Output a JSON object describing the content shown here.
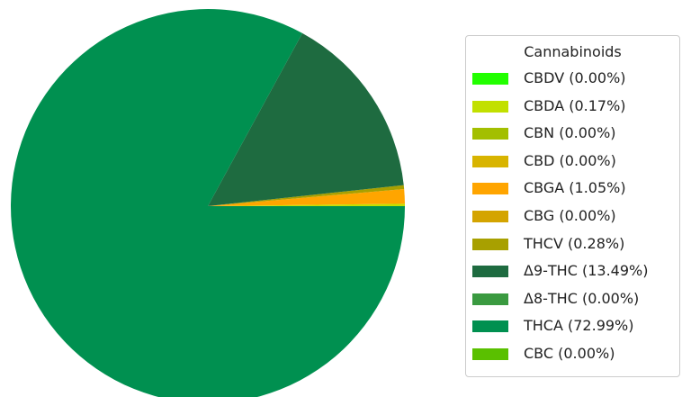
{
  "chart_data": {
    "type": "pie",
    "legend_title": "Cannabinoids",
    "legend_position": "right",
    "start_angle_deg": 0,
    "direction": "counterclockwise",
    "slices": [
      {
        "name": "CBDV",
        "label": "CBDV (0.00%)",
        "value": 0.0,
        "color": "#22ff00"
      },
      {
        "name": "CBDA",
        "label": "CBDA (0.17%)",
        "value": 0.17,
        "color": "#c2e000"
      },
      {
        "name": "CBN",
        "label": "CBN (0.00%)",
        "value": 0.0,
        "color": "#a3bf00"
      },
      {
        "name": "CBD",
        "label": "CBD (0.00%)",
        "value": 0.0,
        "color": "#d8b400"
      },
      {
        "name": "CBGA",
        "label": "CBGA (1.05%)",
        "value": 1.05,
        "color": "#ffa500"
      },
      {
        "name": "CBG",
        "label": "CBG (0.00%)",
        "value": 0.0,
        "color": "#d4a400"
      },
      {
        "name": "THCV",
        "label": "THCV (0.28%)",
        "value": 0.28,
        "color": "#a8a000"
      },
      {
        "name": "Δ9-THC",
        "label": "Δ9-THC (13.49%)",
        "value": 13.49,
        "color": "#1e6b40"
      },
      {
        "name": "Δ8-THC",
        "label": "Δ8-THC (0.00%)",
        "value": 0.0,
        "color": "#3a9a40"
      },
      {
        "name": "THCA",
        "label": "THCA (72.99%)",
        "value": 72.99,
        "color": "#009050"
      },
      {
        "name": "CBC",
        "label": "CBC (0.00%)",
        "value": 0.0,
        "color": "#5ac000"
      }
    ]
  }
}
